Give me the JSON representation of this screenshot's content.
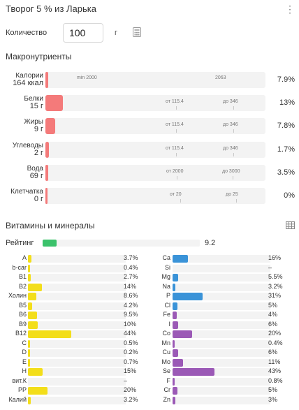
{
  "header": {
    "title": "Творог 5 % из Ларька",
    "menu_icon": "⋮"
  },
  "quantity": {
    "label": "Количество",
    "value": "100",
    "unit": "г"
  },
  "macros": {
    "title": "Макронутриенты",
    "bar_color": "#f47a7a",
    "rows": [
      {
        "label1": "Калории",
        "label2": "164 ккал",
        "pct": "7.9%",
        "fill": 0.01,
        "min": "min 2000",
        "max": "2063"
      },
      {
        "label1": "Белки",
        "label2": "15 г",
        "pct": "13%",
        "fill": 0.08,
        "min": "от 115.4",
        "max": "до 346"
      },
      {
        "label1": "Жиры",
        "label2": "9 г",
        "pct": "7.8%",
        "fill": 0.045,
        "min": "от 115.4",
        "max": "до 346"
      },
      {
        "label1": "Углеводы",
        "label2": "2 г",
        "pct": "1.7%",
        "fill": 0.015,
        "min": "от 115.4",
        "max": "до 346"
      },
      {
        "label1": "Вода",
        "label2": "69 г",
        "pct": "3.5%",
        "fill": 0.012,
        "min": "от 2000",
        "max": "до 3000"
      },
      {
        "label1": "Клетчатка",
        "label2": "0 г",
        "pct": "0%",
        "fill": 0,
        "min": "от 20",
        "max": "до 25"
      }
    ]
  },
  "vitamins": {
    "title": "Витамины и минералы",
    "rating": {
      "label": "Рейтинг",
      "value": "9.2",
      "fraction": 0.09,
      "color": "#3bc26b"
    },
    "left_color": "#f3de1a",
    "right_blue": "#3a93d8",
    "right_purple": "#9b59b6",
    "left": [
      {
        "name": "A",
        "val": "3.7%",
        "f": 0.037
      },
      {
        "name": "b-car",
        "val": "0.4%",
        "f": 0.004
      },
      {
        "name": "B1",
        "val": "2.7%",
        "f": 0.027
      },
      {
        "name": "B2",
        "val": "14%",
        "f": 0.14
      },
      {
        "name": "Холин",
        "val": "8.6%",
        "f": 0.086
      },
      {
        "name": "B5",
        "val": "4.2%",
        "f": 0.042
      },
      {
        "name": "B6",
        "val": "9.5%",
        "f": 0.095
      },
      {
        "name": "B9",
        "val": "10%",
        "f": 0.1
      },
      {
        "name": "B12",
        "val": "44%",
        "f": 0.44
      },
      {
        "name": "C",
        "val": "0.5%",
        "f": 0.005
      },
      {
        "name": "D",
        "val": "0.2%",
        "f": 0.002
      },
      {
        "name": "E",
        "val": "0.7%",
        "f": 0.007
      },
      {
        "name": "H",
        "val": "15%",
        "f": 0.15
      },
      {
        "name": "вит.К",
        "val": "–",
        "f": 0
      },
      {
        "name": "PP",
        "val": "20%",
        "f": 0.2
      },
      {
        "name": "Калий",
        "val": "3.2%",
        "f": 0.032
      }
    ],
    "right": [
      {
        "name": "Ca",
        "val": "16%",
        "f": 0.16,
        "c": "blue"
      },
      {
        "name": "Si",
        "val": "–",
        "f": 0,
        "c": "blue"
      },
      {
        "name": "Mg",
        "val": "5.5%",
        "f": 0.055,
        "c": "blue"
      },
      {
        "name": "Na",
        "val": "3.2%",
        "f": 0.032,
        "c": "blue"
      },
      {
        "name": "P",
        "val": "31%",
        "f": 0.31,
        "c": "blue"
      },
      {
        "name": "Cl",
        "val": "5%",
        "f": 0.05,
        "c": "blue"
      },
      {
        "name": "Fe",
        "val": "4%",
        "f": 0.04,
        "c": "purple"
      },
      {
        "name": "I",
        "val": "6%",
        "f": 0.06,
        "c": "purple"
      },
      {
        "name": "Co",
        "val": "20%",
        "f": 0.2,
        "c": "purple"
      },
      {
        "name": "Mn",
        "val": "0.4%",
        "f": 0.004,
        "c": "purple"
      },
      {
        "name": "Cu",
        "val": "6%",
        "f": 0.06,
        "c": "purple"
      },
      {
        "name": "Mo",
        "val": "11%",
        "f": 0.11,
        "c": "purple"
      },
      {
        "name": "Se",
        "val": "43%",
        "f": 0.43,
        "c": "purple"
      },
      {
        "name": "F",
        "val": "0.8%",
        "f": 0.008,
        "c": "purple"
      },
      {
        "name": "Cr",
        "val": "5%",
        "f": 0.05,
        "c": "purple"
      },
      {
        "name": "Zn",
        "val": "3%",
        "f": 0.03,
        "c": "purple"
      }
    ]
  }
}
